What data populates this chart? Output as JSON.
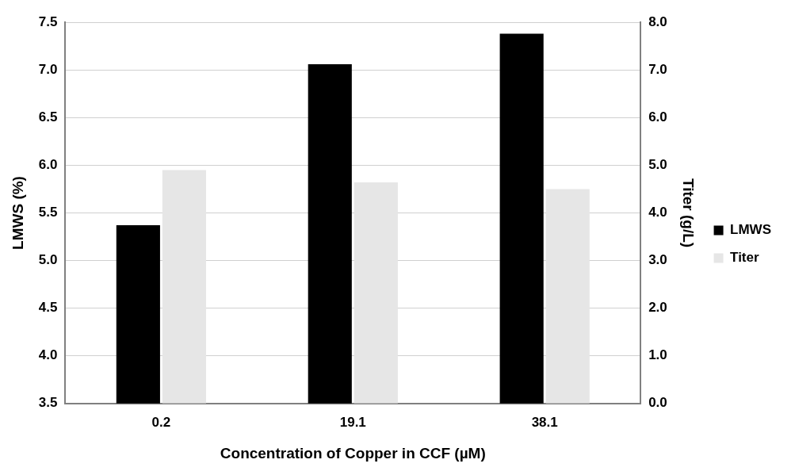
{
  "chart_data": {
    "type": "bar",
    "xlabel": "Concentration of Copper in CCF (µM)",
    "ylabel": "LMWS (%)",
    "y2label": "Titer (g/L)",
    "categories": [
      "0.2",
      "19.1",
      "38.1"
    ],
    "series": [
      {
        "name": "LMWS",
        "color": "#000000",
        "values": [
          5.37,
          7.06,
          7.38
        ]
      },
      {
        "name": "Titer",
        "color": "#e6e6e6",
        "axis": "y2",
        "values": [
          4.9,
          4.64,
          4.5
        ]
      }
    ],
    "ylim": [
      3.5,
      7.5
    ],
    "yticks": [
      {
        "value": 3.5,
        "label": "3.5"
      },
      {
        "value": 4,
        "label": "4.0"
      },
      {
        "value": 4.5,
        "label": "4.5"
      },
      {
        "value": 5,
        "label": "5.0"
      },
      {
        "value": 5.5,
        "label": "5.5"
      },
      {
        "value": 6,
        "label": "6.0"
      },
      {
        "value": 6.5,
        "label": "6.5"
      },
      {
        "value": 7,
        "label": "7.0"
      },
      {
        "value": 7.5,
        "label": "7.5"
      }
    ],
    "y2lim": [
      0,
      8
    ],
    "y2ticks": [
      {
        "value": 0,
        "label": "0.0"
      },
      {
        "value": 1,
        "label": "1.0"
      },
      {
        "value": 2,
        "label": "2.0"
      },
      {
        "value": 3,
        "label": "3.0"
      },
      {
        "value": 4,
        "label": "4.0"
      },
      {
        "value": 5,
        "label": "5.0"
      },
      {
        "value": 6,
        "label": "6.0"
      },
      {
        "value": 7,
        "label": "7.0"
      },
      {
        "value": 8,
        "label": "8.0"
      }
    ],
    "grid": "y",
    "legend": "right"
  }
}
